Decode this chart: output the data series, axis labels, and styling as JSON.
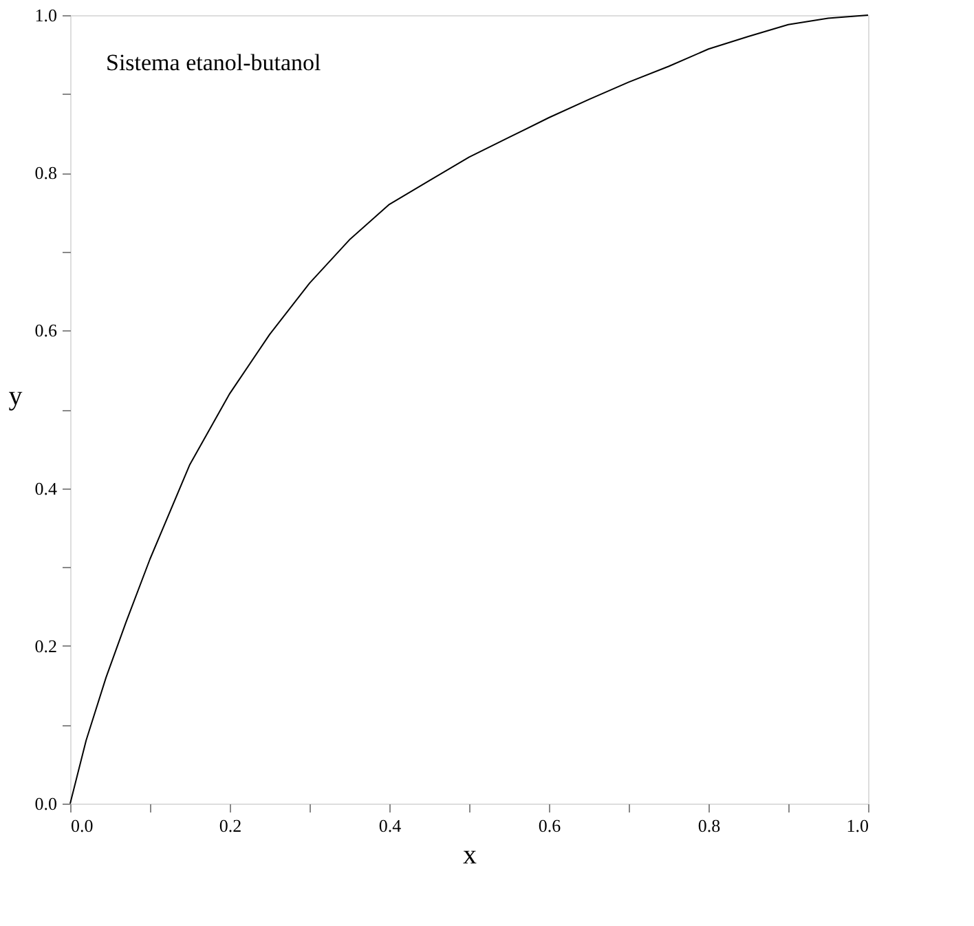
{
  "chart_data": {
    "type": "line",
    "xlabel": "x",
    "ylabel": "y",
    "annotations": [
      "Sistema etanol-butanol"
    ],
    "x": [
      0,
      0.02,
      0.045,
      0.07,
      0.1,
      0.15,
      0.2,
      0.25,
      0.3,
      0.35,
      0.4,
      0.45,
      0.5,
      0.55,
      0.6,
      0.65,
      0.7,
      0.75,
      0.8,
      0.85,
      0.9,
      0.95,
      1.0
    ],
    "series": [
      {
        "color": "#000000",
        "values": [
          0,
          0.08,
          0.16,
          0.23,
          0.31,
          0.43,
          0.52,
          0.595,
          0.66,
          0.715,
          0.76,
          0.79,
          0.82,
          0.845,
          0.87,
          0.893,
          0.915,
          0.935,
          0.957,
          0.973,
          0.988,
          0.996,
          1.0
        ]
      }
    ],
    "xlim": [
      0,
      1
    ],
    "ylim": [
      0,
      1
    ],
    "xticks": [
      {
        "value": 0,
        "label": "0.0"
      },
      {
        "value": 0.1,
        "label": null
      },
      0.2,
      {
        "value": 0.3,
        "label": null
      },
      0.4,
      {
        "value": 0.5,
        "label": null
      },
      0.6,
      {
        "value": 0.7,
        "label": null
      },
      0.8,
      {
        "value": 0.9,
        "label": null
      },
      {
        "value": 1,
        "label": "1.0"
      }
    ],
    "yticks": [
      {
        "value": 0,
        "label": "0.0"
      },
      {
        "value": 0.1,
        "label": null
      },
      0.2,
      {
        "value": 0.3,
        "label": null
      },
      0.4,
      {
        "value": 0.5,
        "label": null
      },
      0.6,
      {
        "value": 0.7,
        "label": null
      },
      0.8,
      {
        "value": 0.9,
        "label": null
      },
      {
        "value": 1,
        "label": "1.0"
      }
    ],
    "grid": false,
    "legend": false,
    "marker": "none",
    "line_style": "solid"
  }
}
